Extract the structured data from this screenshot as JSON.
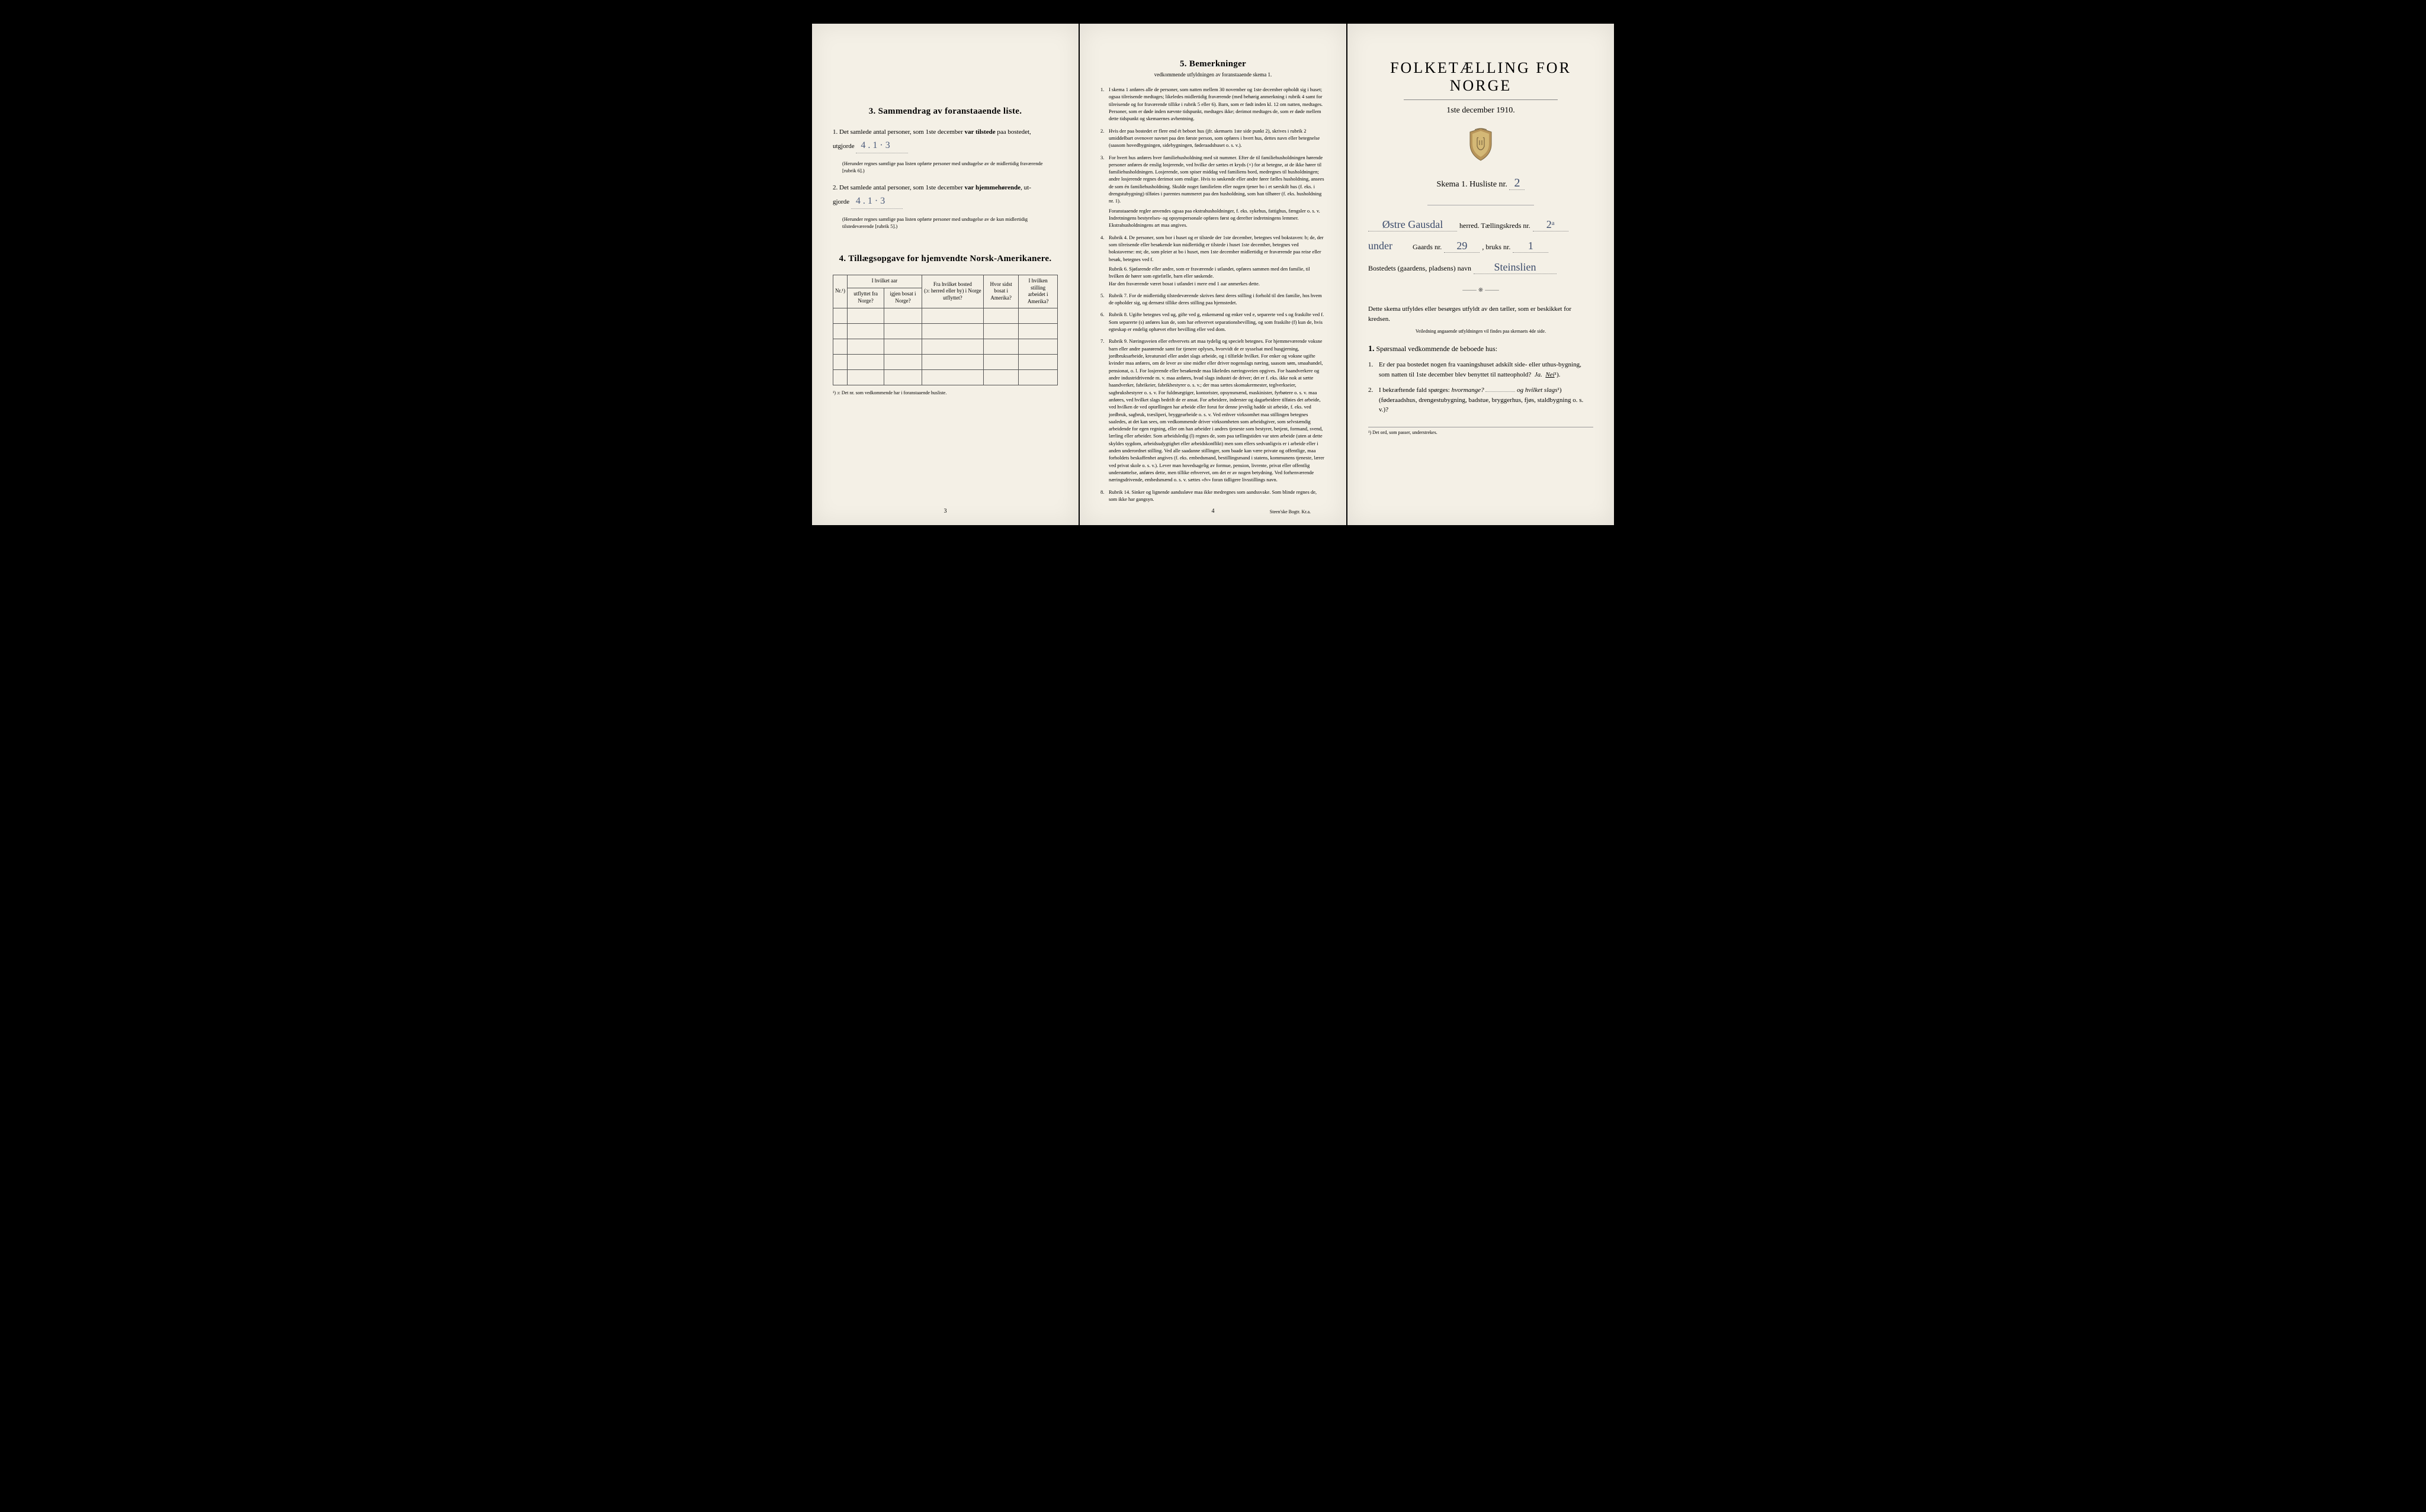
{
  "page1": {
    "section3_title": "3.   Sammendrag av foranstaaende liste.",
    "item1_prefix": "1.  Det samlede antal personer, som 1ste december ",
    "item1_bold": "var tilstede",
    "item1_suffix": " paa bostedet,",
    "item1_line2": "utgjorde",
    "item1_value": "4 . 1 · 3",
    "item1_note": "(Herunder regnes samtlige paa listen opførte personer med undtagelse av de midlertidig fraværende [rubrik 6].)",
    "item2_prefix": "2.  Det samlede antal personer, som 1ste december ",
    "item2_bold": "var hjemmehørende",
    "item2_suffix": ", ut-",
    "item2_line2": "gjorde",
    "item2_value": "4 . 1 · 3",
    "item2_note": "(Herunder regnes samtlige paa listen opførte personer med undtagelse av de kun midlertidig tilstedeværende [rubrik 5].)",
    "section4_title": "4.   Tillægsopgave for hjemvendte Norsk-Amerikanere.",
    "table": {
      "col1": "Nr.¹)",
      "col2a": "I hvilket aar",
      "col2b": "utflyttet fra Norge?",
      "col2c": "igjen bosat i Norge?",
      "col3a": "Fra hvilket bosted",
      "col3b": "(ɔ: herred eller by) i Norge utflyttet?",
      "col4a": "Hvor sidst",
      "col4b": "bosat i Amerika?",
      "col5a": "I hvilken stilling",
      "col5b": "arbeidet i Amerika?"
    },
    "table_footnote": "¹) ɔ: Det nr. som vedkommende har i foranstaaende husliste.",
    "page_num": "3"
  },
  "page2": {
    "title": "5.   Bemerkninger",
    "subtitle": "vedkommende utfyldningen av foranstaaende skema 1.",
    "items": [
      {
        "n": "1.",
        "text": "I skema 1 anføres alle de personer, som natten mellem 30 november og 1ste december opholdt sig i huset; ogsaa tilreisende medtages; likeledes midlertidig fraværende (med behørig anmerkning i rubrik 4 samt for tilreisende og for fraværende tillike i rubrik 5 eller 6). Barn, som er født inden kl. 12 om natten, medtages. Personer, som er døde inden nævnte tidspunkt, medtages ikke; derimot medtages de, som er døde mellem dette tidspunkt og skemaernes avhentning."
      },
      {
        "n": "2.",
        "text": "Hvis der paa bostedet er flere end ét beboet hus (jfr. skemaets 1ste side punkt 2), skrives i rubrik 2 umiddelbart ovenover navnet paa den første person, som opføres i hvert hus, dettes navn eller betegnelse (saasom hovedbygningen, sidebygningen, føderaadshuset o. s. v.)."
      },
      {
        "n": "3.",
        "text": "For hvert hus anføres hver familiehusholdning med sit nummer. Efter de til familiehusholdningen hørende personer anføres de enslig losjerende, ved hvilke der sættes et kryds (×) for at betegne, at de ikke hører til familiehusholdningen. Losjerende, som spiser middag ved familiens bord, medregnes til husholdningen; andre losjerende regnes derimot som enslige. Hvis to søskende eller andre fører fælles husholdning, ansees de som én familiehusholdning. Skulde noget familielem eller nogen tjener bo i et særskilt hus (f. eks. i drengstubygning) tilføies i parentes nummeret paa den husholdning, som han tilhører (f. eks. husholdning nr. 1).",
        "sub": "Foranstaaende regler anvendes ogsaa paa ekstrahusholdninger, f. eks. sykehus, fattighus, fængsler o. s. v. Indretningens bestyrelses- og opsynspersonale opføres først og derefter indretningens lemmer. Ekstrahusholdningens art maa angives."
      },
      {
        "n": "4.",
        "text": "Rubrik 4. De personer, som bor i huset og er tilstede der 1ste december, betegnes ved bokstaven: b; de, der som tilreisende eller besøkende kun midlertidig er tilstede i huset 1ste december, betegnes ved bokstaverne: mt; de, som pleier at bo i huset, men 1ste december midlertidig er fraværende paa reise eller besøk, betegnes ved f.",
        "sub": "Rubrik 6. Sjøfarende eller andre, som er fraværende i utlandet, opføres sammen med den familie, til hvilken de hører som egtefælle, barn eller søskende.\nHar den fraværende været bosat i utlandet i mere end 1 aar anmerkes dette."
      },
      {
        "n": "5.",
        "text": "Rubrik 7. For de midlertidig tilstedeværende skrives først deres stilling i forhold til den familie, hos hvem de opholder sig, og dernæst tillike deres stilling paa hjemstedet."
      },
      {
        "n": "6.",
        "text": "Rubrik 8. Ugifte betegnes ved ug, gifte ved g, enkemænd og enker ved e, separerte ved s og fraskilte ved f. Som separerte (s) anføres kun de, som har erhvervet separationsbevilling, og som fraskilte (f) kun de, hvis egteskap er endelig ophævet efter bevilling eller ved dom."
      },
      {
        "n": "7.",
        "text": "Rubrik 9. Næringsveien eller erhvervets art maa tydelig og specielt betegnes.\nFor hjemmeværende voksne barn eller andre paarørende samt for tjenere oplyses, hvorvidt de er sysselsat med husgjerning, jordbruksarbeide, kreaturstel eller andet slags arbeide, og i tilfælde hvilket. For enker og voksne ugifte kvinder maa anføres, om de lever av sine midler eller driver nogenslags næring, saasom søm, smaahandel, pensionat, o. l.\nFor losjerende eller besøkende maa likeledes næringsveien opgives.\nFor haandverkere og andre industridrivende m. v. maa anføres, hvad slags industri de driver; det er f. eks. ikke nok at sætte haandverker, fabrikeier, fabrikbestyrer o. s. v.; der maa sættes skomakermester, teglverkseier, sagbruksbestyrer o. s. v.\nFor fuldmægtiger, kontorister, opsynsmænd, maskinister, fyrbøtere o. s. v. maa anføres, ved hvilket slags bedrift de er ansat.\nFor arbeidere, inderster og dagarbeidere tilføies det arbeide, ved hvilken de ved optællingen har arbeide eller forut for denne jevnlig hadde sit arbeide, f. eks. ved jordbruk, sagbruk, træsliperi, bryggearbeide o. s. v.\nVed enhver virksomhet maa stillingen betegnes saaledes, at det kan sees, om vedkommende driver virksomheten som arbeidsgiver, som selvstændig arbeidende for egen regning, eller om han arbeider i andres tjeneste som bestyrer, betjent, formand, svend, lærling eller arbeider.\nSom arbeidsledig (l) regnes de, som paa tællingstiden var uten arbeide (uten at dette skyldes sygdom, arbeidsudygtighet eller arbeidskonflikt) men som ellers sedvanligvis er i arbeide eller i anden underordnet stilling.\nVed alle saadanne stillinger, som baade kan være private og offentlige, maa forholdets beskaffenhet angives (f. eks. embedsmand, bestillingsmand i statens, kommunens tjeneste, lærer ved privat skole o. s. v.).\nLever man hovedsagelig av formue, pension, livrente, privat eller offentlig understøttelse, anføres dette, men tillike erhvervet, om det er av nogen betydning.\nVed forhenværende næringsdrivende, embedsmænd o. s. v. sættes «fv» foran tidligere livsstillings navn."
      },
      {
        "n": "8.",
        "text": "Rubrik 14. Sinker og lignende aandssløve maa ikke medregnes som aandssvake.\nSom blinde regnes de, som ikke har gangsyn."
      }
    ],
    "page_num": "4",
    "printer": "Steen'ske Bogtr.  Kr.a."
  },
  "page3": {
    "title": "FOLKETÆLLING FOR NORGE",
    "date": "1ste december 1910.",
    "skema_label": "Skema 1.  Husliste nr.",
    "husliste_nr": "2",
    "herred_value": "Østre Gausdal",
    "herred_label": "herred.  Tællingskreds nr.",
    "kreds_nr": "2ᵃ",
    "under_label": "under",
    "gaards_label": "Gaards nr.",
    "gaards_nr": "29",
    "bruks_label": ", bruks nr.",
    "bruks_nr": "1",
    "bosted_label": "Bostedets (gaardens, pladsens) navn",
    "bosted_value": "Steinslien",
    "instruction": "Dette skema utfyldes eller besørges utfyldt av den tæller, som er beskikket for kredsen.",
    "instruction_small": "Veiledning angaaende utfyldningen vil findes paa skemaets 4de side.",
    "q_head_num": "1.",
    "q_head_text": "Spørsmaal vedkommende de beboede hus:",
    "q1_num": "1.",
    "q1_text": "Er der paa bostedet nogen fra vaaningshuset adskilt side- eller uthus-bygning, som natten til 1ste december blev benyttet til natteophold?",
    "q1_ja": "Ja.",
    "q1_nei": "Nei",
    "q1_sup": "¹).",
    "q2_num": "2.",
    "q2_text_a": "I bekræftende fald spørges: ",
    "q2_text_b": "hvormange?",
    "q2_text_c": "og hvilket slags",
    "q2_sup": "¹)",
    "q2_text_d": "(føderaadshus, drengestubygning, badstue, bryggerhus, fjøs, staldbygning o. s. v.)?",
    "footnote": "¹) Det ord, som passer, understrekes."
  }
}
